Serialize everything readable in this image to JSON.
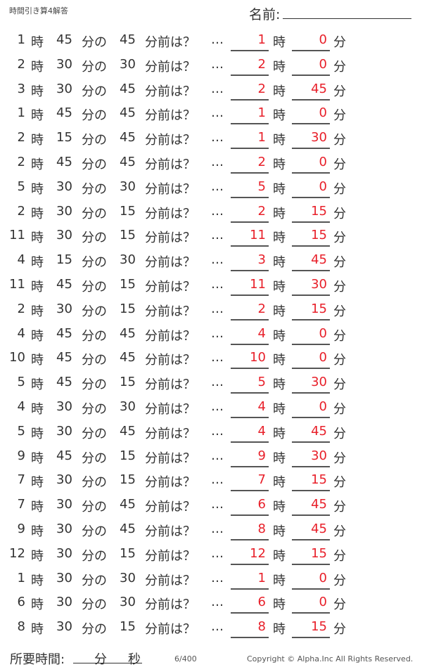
{
  "header": {
    "title": "時間引き算4解答",
    "name_label": "名前:"
  },
  "labels": {
    "hour": "時",
    "minute_of": "分の",
    "minutes_before": "分前は？",
    "ellipsis": "…",
    "minute": "分"
  },
  "answer_color": "#e8202a",
  "problems": [
    {
      "h": "1",
      "m": "45",
      "sub": "45",
      "ah": "1",
      "am": "0"
    },
    {
      "h": "2",
      "m": "30",
      "sub": "30",
      "ah": "2",
      "am": "0"
    },
    {
      "h": "3",
      "m": "30",
      "sub": "45",
      "ah": "2",
      "am": "45"
    },
    {
      "h": "1",
      "m": "45",
      "sub": "45",
      "ah": "1",
      "am": "0"
    },
    {
      "h": "2",
      "m": "15",
      "sub": "45",
      "ah": "1",
      "am": "30"
    },
    {
      "h": "2",
      "m": "45",
      "sub": "45",
      "ah": "2",
      "am": "0"
    },
    {
      "h": "5",
      "m": "30",
      "sub": "30",
      "ah": "5",
      "am": "0"
    },
    {
      "h": "2",
      "m": "30",
      "sub": "15",
      "ah": "2",
      "am": "15"
    },
    {
      "h": "11",
      "m": "30",
      "sub": "15",
      "ah": "11",
      "am": "15"
    },
    {
      "h": "4",
      "m": "15",
      "sub": "30",
      "ah": "3",
      "am": "45"
    },
    {
      "h": "11",
      "m": "45",
      "sub": "15",
      "ah": "11",
      "am": "30"
    },
    {
      "h": "2",
      "m": "30",
      "sub": "15",
      "ah": "2",
      "am": "15"
    },
    {
      "h": "4",
      "m": "45",
      "sub": "45",
      "ah": "4",
      "am": "0"
    },
    {
      "h": "10",
      "m": "45",
      "sub": "45",
      "ah": "10",
      "am": "0"
    },
    {
      "h": "5",
      "m": "45",
      "sub": "15",
      "ah": "5",
      "am": "30"
    },
    {
      "h": "4",
      "m": "30",
      "sub": "30",
      "ah": "4",
      "am": "0"
    },
    {
      "h": "5",
      "m": "30",
      "sub": "45",
      "ah": "4",
      "am": "45"
    },
    {
      "h": "9",
      "m": "45",
      "sub": "15",
      "ah": "9",
      "am": "30"
    },
    {
      "h": "7",
      "m": "30",
      "sub": "15",
      "ah": "7",
      "am": "15"
    },
    {
      "h": "7",
      "m": "30",
      "sub": "45",
      "ah": "6",
      "am": "45"
    },
    {
      "h": "9",
      "m": "30",
      "sub": "45",
      "ah": "8",
      "am": "45"
    },
    {
      "h": "12",
      "m": "30",
      "sub": "15",
      "ah": "12",
      "am": "15"
    },
    {
      "h": "1",
      "m": "30",
      "sub": "30",
      "ah": "1",
      "am": "0"
    },
    {
      "h": "6",
      "m": "30",
      "sub": "30",
      "ah": "6",
      "am": "0"
    },
    {
      "h": "8",
      "m": "30",
      "sub": "15",
      "ah": "8",
      "am": "15"
    }
  ],
  "footer": {
    "time_label": "所要時間:",
    "min": "分",
    "sec": "秒",
    "page": "6/400",
    "copyright": "Copyright ©  Alpha.Inc All Rights Reserved."
  }
}
